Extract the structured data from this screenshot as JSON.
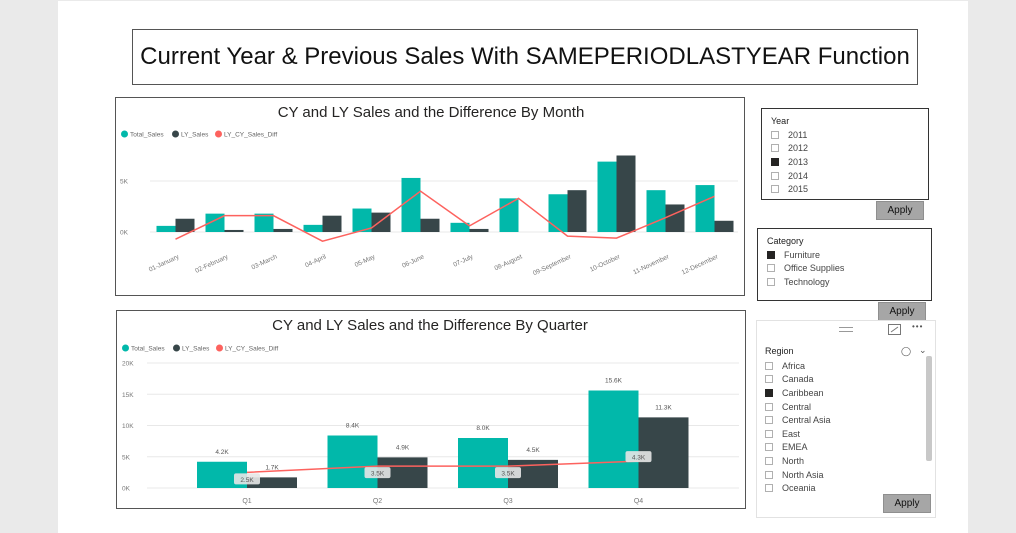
{
  "page_title": "Current Year & Previous Sales With SAMEPERIODLASTYEAR Function",
  "colors": {
    "total_sales": "#01b8aa",
    "ly_sales": "#374649",
    "diff": "#fd625e",
    "gridline": "#e8e8e8",
    "axis_text": "#777777"
  },
  "monthly_chart": {
    "title": "CY and LY Sales and the Difference By Month",
    "legend": [
      "Total_Sales",
      "LY_Sales",
      "LY_CY_Sales_Diff"
    ]
  },
  "quarterly_chart": {
    "title": "CY and LY Sales and the Difference By Quarter",
    "legend": [
      "Total_Sales",
      "LY_Sales",
      "LY_CY_Sales_Diff"
    ]
  },
  "chart_data": [
    {
      "type": "bar",
      "title": "CY and LY Sales and the Difference By Month",
      "categories": [
        "01-January",
        "02-February",
        "03-March",
        "04-April",
        "05-May",
        "06-June",
        "07-July",
        "08-August",
        "09-September",
        "10-October",
        "11-November",
        "12-December"
      ],
      "y_ticks": [
        "0K",
        "5K"
      ],
      "ylim": [
        -1000,
        8000
      ],
      "series": [
        {
          "name": "Total_Sales",
          "kind": "bar",
          "values": [
            600,
            1800,
            1800,
            700,
            2300,
            5300,
            900,
            3300,
            3700,
            6900,
            4100,
            4600
          ]
        },
        {
          "name": "LY_Sales",
          "kind": "bar",
          "values": [
            1300,
            200,
            300,
            1600,
            1900,
            1300,
            300,
            0,
            4100,
            7500,
            2700,
            1100
          ]
        },
        {
          "name": "LY_CY_Sales_Diff",
          "kind": "line",
          "values": [
            -700,
            1600,
            1600,
            -900,
            400,
            4000,
            600,
            3300,
            -400,
            -600,
            1400,
            3500
          ]
        }
      ]
    },
    {
      "type": "bar",
      "title": "CY and LY Sales and the Difference By Quarter",
      "categories": [
        "Q1",
        "Q2",
        "Q3",
        "Q4"
      ],
      "y_ticks": [
        "0K",
        "5K",
        "10K",
        "15K",
        "20K"
      ],
      "ylim": [
        0,
        20000
      ],
      "series": [
        {
          "name": "Total_Sales",
          "kind": "bar",
          "values": [
            4200,
            8400,
            8000,
            15600
          ],
          "labels": [
            "4.2K",
            "8.4K",
            "8.0K",
            "15.6K"
          ]
        },
        {
          "name": "LY_Sales",
          "kind": "bar",
          "values": [
            1700,
            4900,
            4500,
            11300
          ],
          "labels": [
            "1.7K",
            "4.9K",
            "4.5K",
            "11.3K"
          ]
        },
        {
          "name": "LY_CY_Sales_Diff",
          "kind": "line",
          "values": [
            2500,
            3500,
            3500,
            4300
          ],
          "labels": [
            "2.5K",
            "3.5K",
            "3.5K",
            "4.3K"
          ]
        }
      ]
    }
  ],
  "year_slicer": {
    "title": "Year",
    "items": [
      {
        "label": "2011",
        "checked": false
      },
      {
        "label": "2012",
        "checked": false
      },
      {
        "label": "2013",
        "checked": true
      },
      {
        "label": "2014",
        "checked": false
      },
      {
        "label": "2015",
        "checked": false
      }
    ],
    "apply_label": "Apply"
  },
  "category_slicer": {
    "title": "Category",
    "items": [
      {
        "label": "Furniture",
        "checked": true
      },
      {
        "label": "Office Supplies",
        "checked": false
      },
      {
        "label": "Technology",
        "checked": false
      }
    ],
    "apply_label": "Apply"
  },
  "region_slicer": {
    "title": "Region",
    "items": [
      {
        "label": "Africa",
        "checked": false
      },
      {
        "label": "Canada",
        "checked": false
      },
      {
        "label": "Caribbean",
        "checked": true
      },
      {
        "label": "Central",
        "checked": false
      },
      {
        "label": "Central Asia",
        "checked": false
      },
      {
        "label": "East",
        "checked": false
      },
      {
        "label": "EMEA",
        "checked": false
      },
      {
        "label": "North",
        "checked": false
      },
      {
        "label": "North Asia",
        "checked": false
      },
      {
        "label": "Oceania",
        "checked": false
      }
    ],
    "apply_label": "Apply",
    "more_label": "•••"
  }
}
